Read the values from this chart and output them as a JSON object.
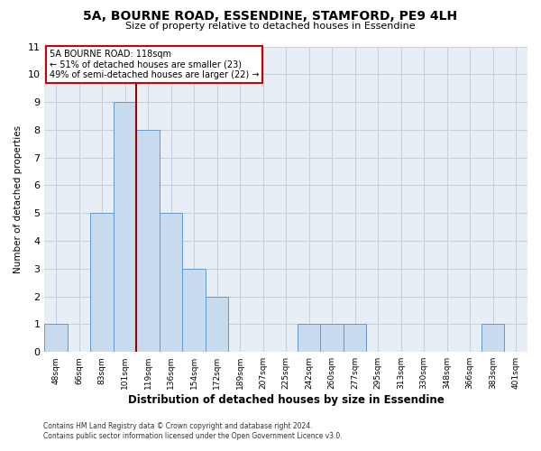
{
  "title": "5A, BOURNE ROAD, ESSENDINE, STAMFORD, PE9 4LH",
  "subtitle": "Size of property relative to detached houses in Essendine",
  "xlabel": "Distribution of detached houses by size in Essendine",
  "ylabel": "Number of detached properties",
  "bar_labels": [
    "48sqm",
    "66sqm",
    "83sqm",
    "101sqm",
    "119sqm",
    "136sqm",
    "154sqm",
    "172sqm",
    "189sqm",
    "207sqm",
    "225sqm",
    "242sqm",
    "260sqm",
    "277sqm",
    "295sqm",
    "313sqm",
    "330sqm",
    "348sqm",
    "366sqm",
    "383sqm",
    "401sqm"
  ],
  "bar_values": [
    1,
    0,
    5,
    9,
    8,
    5,
    3,
    2,
    0,
    0,
    0,
    1,
    1,
    1,
    0,
    0,
    0,
    0,
    0,
    1,
    0
  ],
  "bar_color": "#c8daed",
  "bar_edge_color": "#6699cc",
  "grid_color": "#c8d0dc",
  "plot_bg_color": "#e8eef5",
  "fig_bg_color": "#ffffff",
  "vline_x_index": 4,
  "vline_color": "#990000",
  "annotation_text_line1": "5A BOURNE ROAD: 118sqm",
  "annotation_text_line2": "← 51% of detached houses are smaller (23)",
  "annotation_text_line3": "49% of semi-detached houses are larger (22) →",
  "annotation_box_facecolor": "white",
  "annotation_box_edgecolor": "#cc0000",
  "ylim_max": 11,
  "footer_line1": "Contains HM Land Registry data © Crown copyright and database right 2024.",
  "footer_line2": "Contains public sector information licensed under the Open Government Licence v3.0."
}
